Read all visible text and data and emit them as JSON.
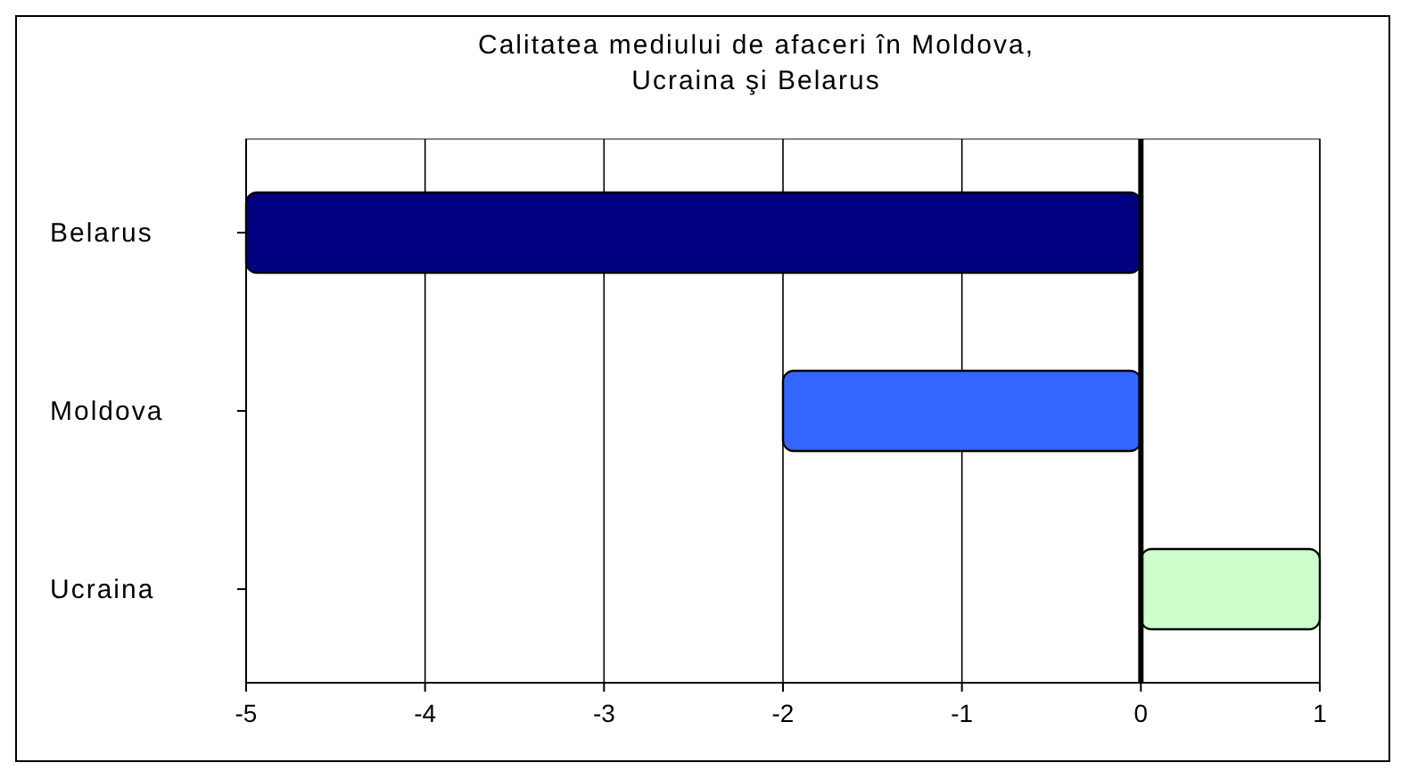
{
  "chart_data": {
    "type": "bar",
    "orientation": "horizontal",
    "title": "Calitatea mediului de afaceri în Moldova, Ucraina şi Belarus",
    "categories": [
      "Belarus",
      "Moldova",
      "Ucraina"
    ],
    "values": [
      -5.0,
      -2.0,
      1.0
    ],
    "colors": [
      "#000080",
      "#3366ff",
      "#ccffcc"
    ],
    "xlim": [
      -5,
      1
    ],
    "xticks": [
      -5,
      -4,
      -3,
      -2,
      -1,
      0,
      1
    ],
    "grid": "x"
  }
}
